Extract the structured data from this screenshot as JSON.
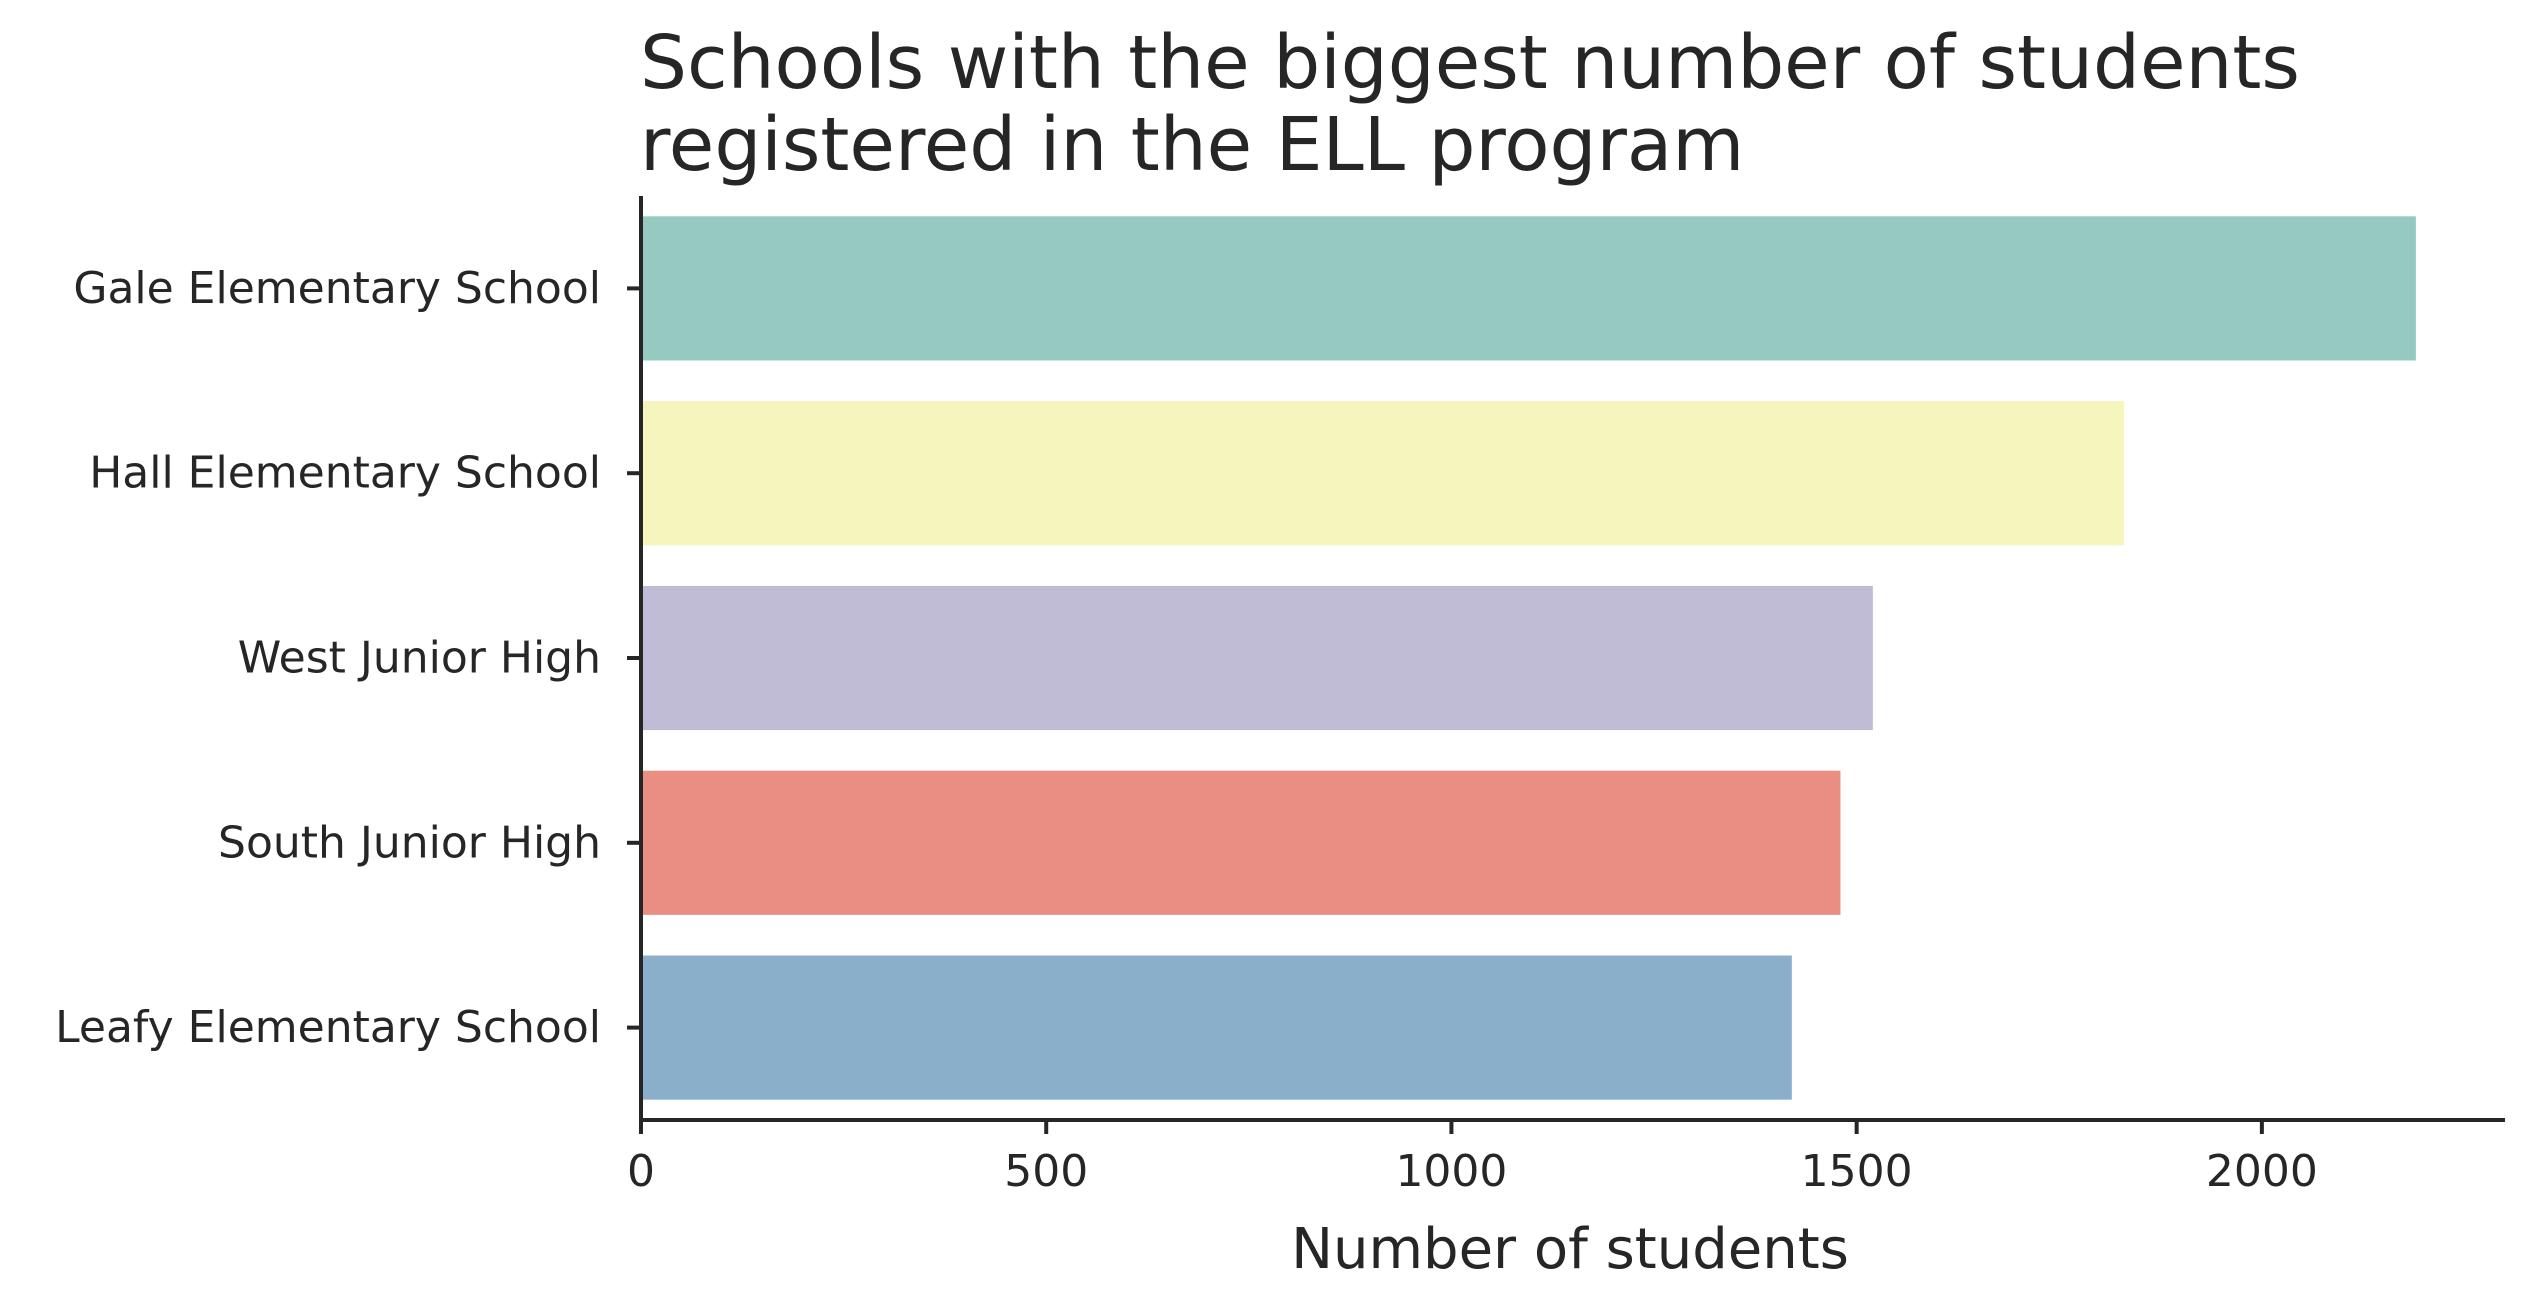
{
  "chart_data": {
    "type": "bar",
    "orientation": "horizontal",
    "title_lines": [
      "Schools with the biggest number of students",
      "registered in the ELL program"
    ],
    "xlabel": "Number of students",
    "ylabel": "",
    "categories": [
      "Gale Elementary School",
      "Hall Elementary School",
      "West Junior High",
      "South Junior High",
      "Leafy Elementary School"
    ],
    "values": [
      2190,
      1830,
      1520,
      1480,
      1420
    ],
    "colors": [
      "#96c9c0",
      "#f6f5bd",
      "#c0bcd5",
      "#ea8d83",
      "#8aafca"
    ],
    "xlim": [
      0,
      2300
    ],
    "xticks": [
      0,
      500,
      1000,
      1500,
      2000
    ],
    "xtick_labels": [
      "0",
      "500",
      "1000",
      "1500",
      "2000"
    ],
    "grid": false,
    "legend": "none"
  }
}
